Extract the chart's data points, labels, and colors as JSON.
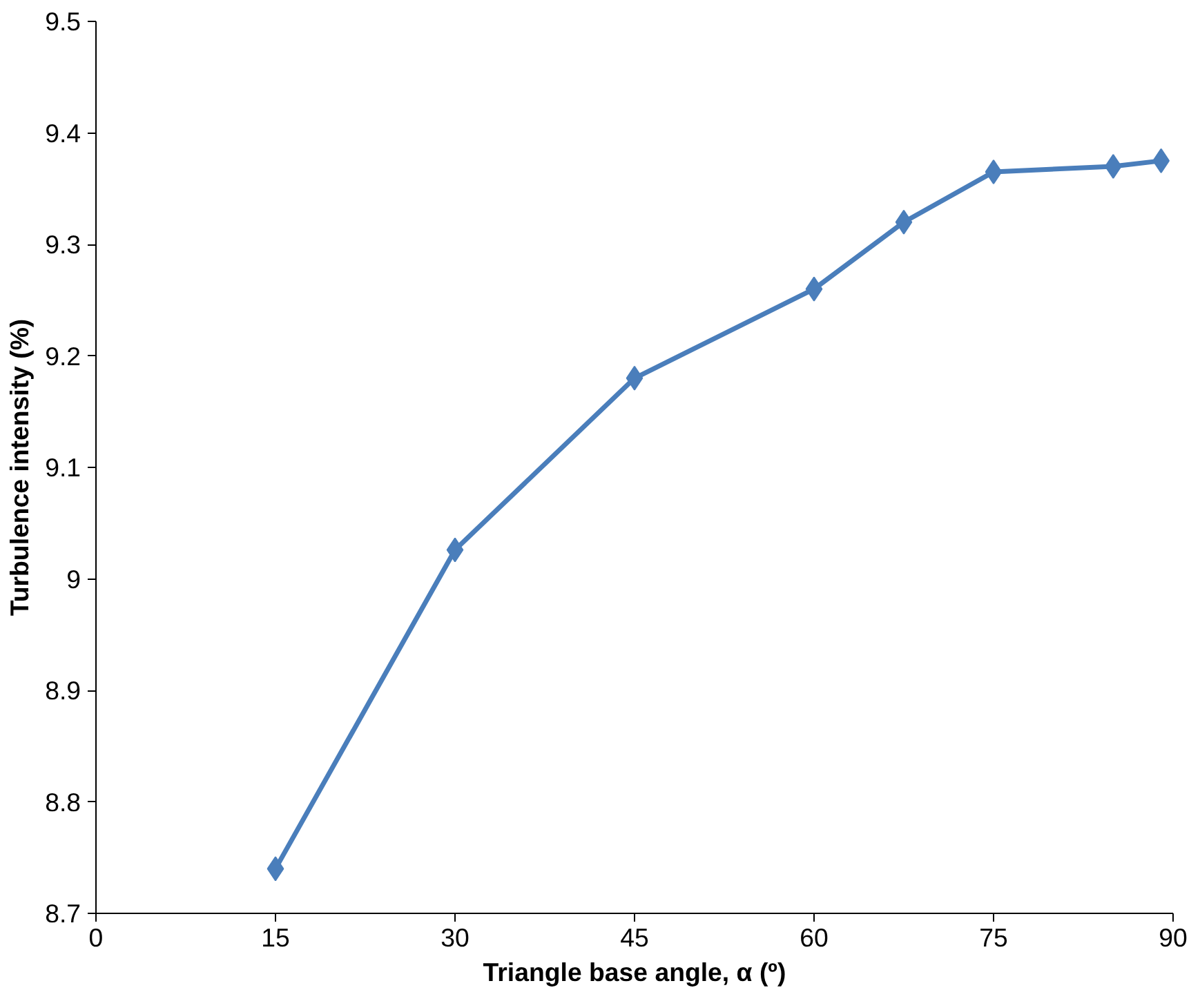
{
  "chart_data": {
    "type": "line",
    "xlabel": "Triangle base angle, α (º)",
    "ylabel": "Turbulence intensity (%)",
    "x": [
      15,
      30,
      45,
      60,
      67.5,
      75,
      85,
      89
    ],
    "series": [
      {
        "color": "#4a7ebb",
        "values": [
          8.74,
          9.026,
          9.18,
          9.26,
          9.32,
          9.365,
          9.37,
          9.375
        ]
      }
    ],
    "xlim": [
      0,
      90
    ],
    "xticks": [
      0,
      15,
      30,
      45,
      60,
      75,
      90
    ],
    "ylim": [
      8.7,
      9.5
    ],
    "yticks": [
      8.7,
      8.8,
      8.9,
      9,
      9.1,
      9.2,
      9.3,
      9.4,
      9.5
    ],
    "marker": "diamond",
    "line_style": "solid",
    "grid": false
  }
}
